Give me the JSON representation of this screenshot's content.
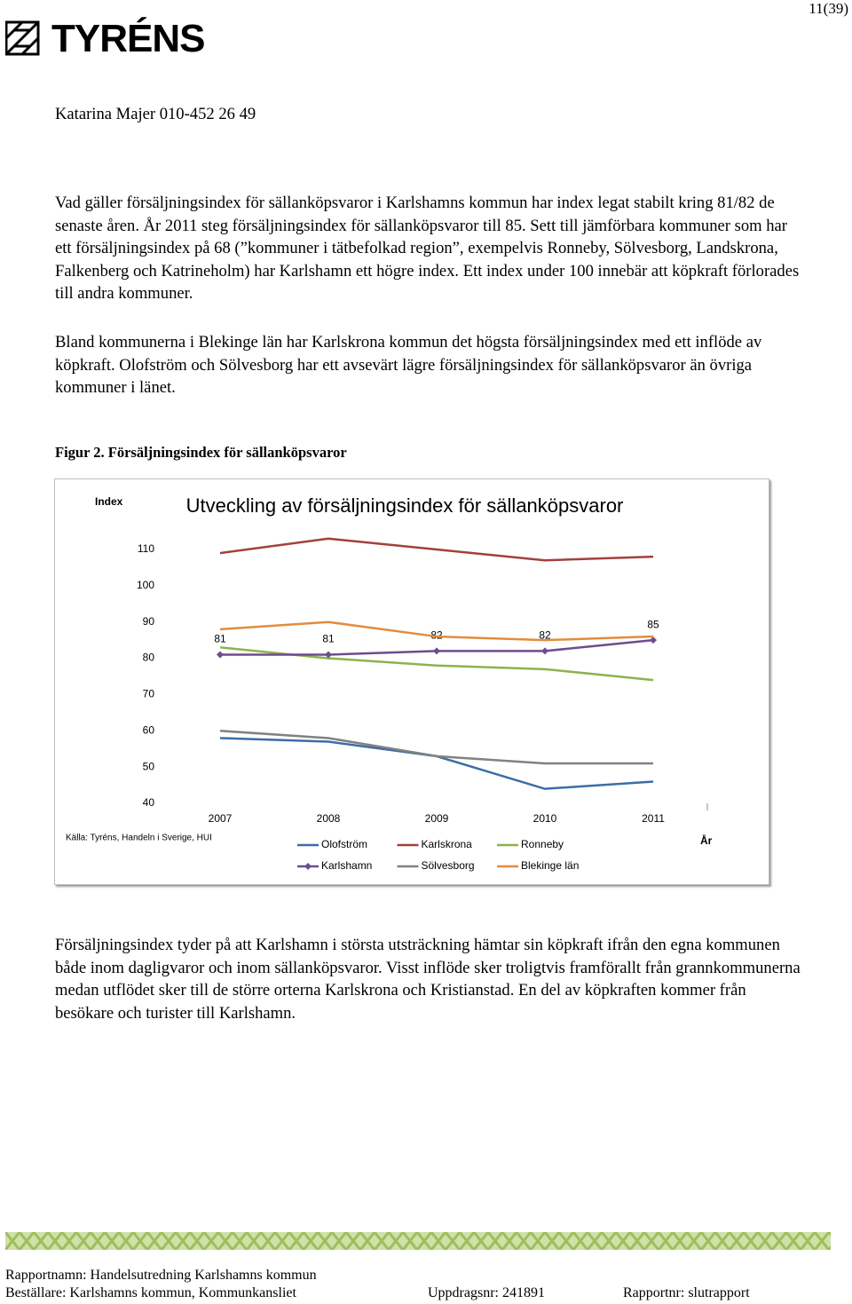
{
  "header": {
    "page": "11(39)",
    "logo": "TYRÉNS",
    "author": "Katarina Majer 010-452 26 49"
  },
  "paragraphs": [
    "Vad gäller försäljningsindex för sällanköpsvaror i Karlshamns kommun har index legat stabilt kring 81/82 de senaste åren. År 2011 steg försäljningsindex för sällanköpsvaror till 85. Sett till jämförbara kommuner som har ett försäljningsindex på 68 (”kommuner i tätbefolkad region”, exempelvis Ronneby, Sölvesborg, Landskrona, Falkenberg och Katrineholm) har Karlshamn ett högre index. Ett index under 100 innebär att köpkraft förlorades till andra kommuner.",
    "Bland kommunerna i Blekinge län har Karlskrona kommun det högsta försäljningsindex med ett inflöde av köpkraft. Olofström och Sölvesborg har ett avsevärt lägre försäljningsindex för sällanköpsvaror än övriga kommuner i länet."
  ],
  "figure_caption": "Figur 2. Försäljningsindex för sällanköpsvaror",
  "chart_data": {
    "type": "line",
    "title": "Utveckling  av försäljningsindex  för sällanköpsvaror",
    "y_label": "Index",
    "x_label": "År",
    "source": "Källa: Tyréns, Handeln i Sverige, HUI",
    "categories": [
      "2007",
      "2008",
      "2009",
      "2010",
      "2011"
    ],
    "ylim": [
      40,
      110
    ],
    "yticks": [
      40,
      50,
      60,
      70,
      80,
      90,
      100,
      110
    ],
    "grid": false,
    "legend": "bottom",
    "series": [
      {
        "name": "Olofström",
        "color": "#3c6da6",
        "values": [
          58,
          57,
          53,
          44,
          46
        ]
      },
      {
        "name": "Karlskrona",
        "color": "#a3403c",
        "values": [
          109,
          113,
          110,
          107,
          108
        ]
      },
      {
        "name": "Ronneby",
        "color": "#8eb24d",
        "values": [
          83,
          80,
          78,
          77,
          74
        ]
      },
      {
        "name": "Karlshamn",
        "color": "#6e4c8e",
        "marker": "diamond",
        "data_labels": true,
        "values": [
          81,
          81,
          82,
          82,
          85
        ]
      },
      {
        "name": "Sölvesborg",
        "color": "#818181",
        "values": [
          60,
          58,
          53,
          51,
          51
        ]
      },
      {
        "name": "Blekinge län",
        "color": "#e38c3d",
        "values": [
          88,
          90,
          86,
          85,
          86
        ]
      }
    ]
  },
  "after_paragraph": "Försäljningsindex tyder på att Karlshamn i största utsträckning hämtar sin köpkraft ifrån den egna kommunen både inom dagligvaror och inom sällanköpsvaror. Visst inflöde sker troligtvis framförallt från grannkommunerna medan utflödet sker till de större orterna Karlskrona och Kristianstad. En del av köpkraften kommer från besökare och turister till Karlshamn.",
  "footer": {
    "report_name": "Rapportnamn: Handelsutredning Karlshamns kommun",
    "client": "Beställare: Karlshamns kommun, Kommunkansliet",
    "assignment": "Uppdragsnr: 241891",
    "report_no": "Rapportnr: slutrapport"
  }
}
